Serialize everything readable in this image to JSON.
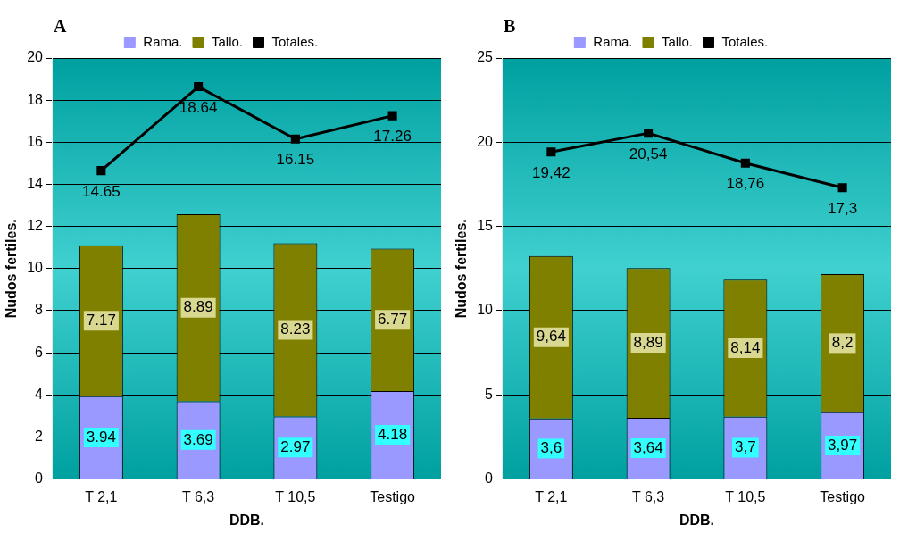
{
  "chart_data": [
    {
      "type": "bar",
      "title": "A",
      "xlabel": "DDB.",
      "ylabel": "Nudos fertiles.",
      "categories": [
        "T 2,1",
        "T 6,3",
        "T 10,5",
        "Testigo"
      ],
      "stacked": true,
      "ylim": [
        0,
        20
      ],
      "yticks": [
        0,
        2,
        4,
        6,
        8,
        10,
        12,
        14,
        16,
        18,
        20
      ],
      "grid": "y",
      "legend": "top",
      "marker": "square",
      "series": [
        {
          "name": "Rama.",
          "color": "#9999ff",
          "values": [
            3.94,
            3.69,
            2.97,
            4.18
          ],
          "value_labels": [
            "3.94",
            "3.69",
            "2.97",
            "4.18"
          ]
        },
        {
          "name": "Tallo.",
          "color": "#808000",
          "values": [
            7.17,
            8.89,
            8.23,
            6.77
          ],
          "value_labels": [
            "7.17",
            "8.89",
            "8.23",
            "6.77"
          ]
        },
        {
          "name": "Totales.",
          "type": "line",
          "color": "#000000",
          "values": [
            14.65,
            18.64,
            16.15,
            17.26
          ],
          "value_labels": [
            "14.65",
            "18.64",
            "16.15",
            "17.26"
          ]
        }
      ]
    },
    {
      "type": "bar",
      "title": "B",
      "xlabel": "DDB.",
      "ylabel": "Nudos fertiles.",
      "categories": [
        "T 2,1",
        "T 6,3",
        "T 10,5",
        "Testigo"
      ],
      "stacked": true,
      "ylim": [
        0,
        25
      ],
      "yticks": [
        0,
        5,
        10,
        15,
        20,
        25
      ],
      "grid": "y",
      "legend": "top",
      "marker": "square",
      "series": [
        {
          "name": "Rama.",
          "color": "#9999ff",
          "values": [
            3.6,
            3.64,
            3.7,
            3.97
          ],
          "value_labels": [
            "3,6",
            "3,64",
            "3,7",
            "3,97"
          ]
        },
        {
          "name": "Tallo.",
          "color": "#808000",
          "values": [
            9.64,
            8.89,
            8.14,
            8.2
          ],
          "value_labels": [
            "9,64",
            "8,89",
            "8,14",
            "8,2"
          ]
        },
        {
          "name": "Totales.",
          "type": "line",
          "color": "#000000",
          "values": [
            19.42,
            20.54,
            18.76,
            17.3
          ],
          "value_labels": [
            "19,42",
            "20,54",
            "18,76",
            "17,3"
          ]
        }
      ]
    }
  ]
}
